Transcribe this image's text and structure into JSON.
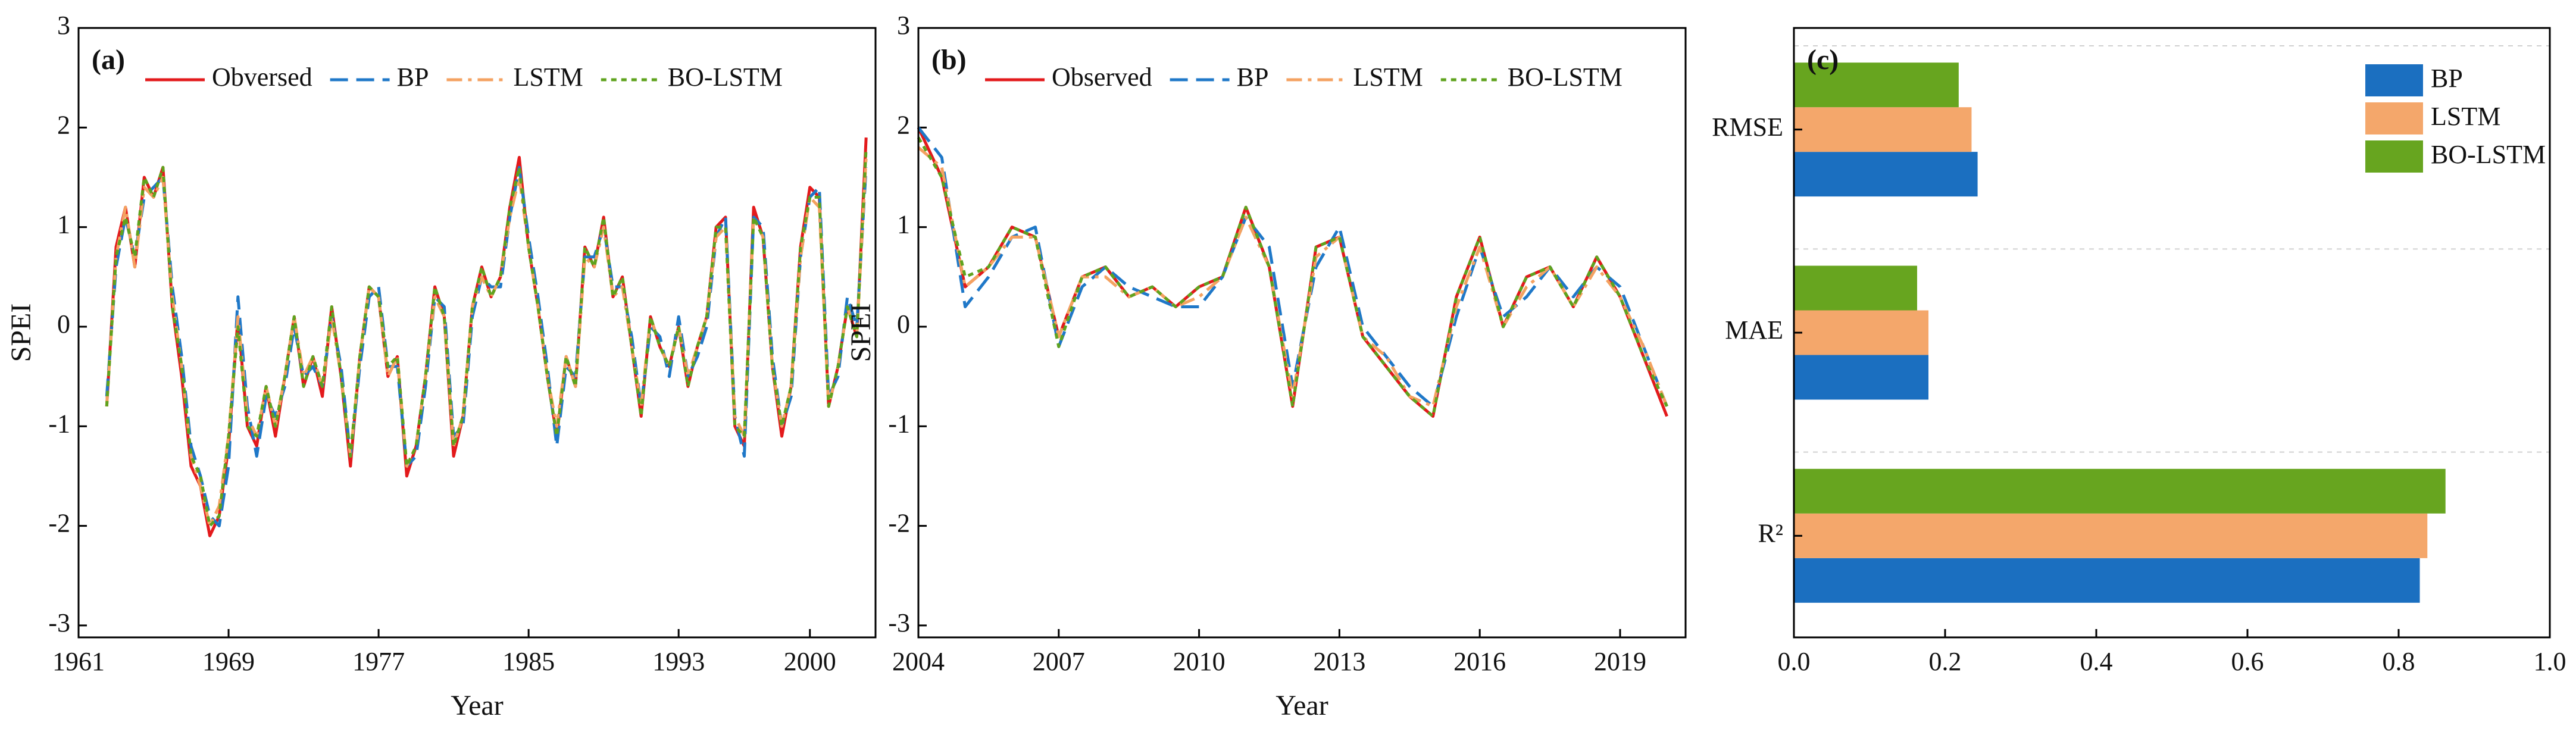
{
  "chart_data": [
    {
      "type": "line",
      "label": "(a)",
      "xlabel": "Year",
      "ylabel": "SPEI",
      "legend": "upper left",
      "xlim": [
        1961,
        2003.5
      ],
      "xticks": [
        1961,
        1969,
        1977,
        1985,
        1993,
        2000
      ],
      "ylim": [
        -3.12,
        3
      ],
      "yticks": [
        -3,
        -2,
        -1,
        0,
        1,
        2,
        3
      ],
      "x": [
        1962.5,
        1963,
        1963.5,
        1964,
        1964.5,
        1965,
        1965.5,
        1966,
        1966.5,
        1967,
        1967.5,
        1968,
        1968.5,
        1969,
        1969.5,
        1970,
        1970.5,
        1971,
        1971.5,
        1972,
        1972.5,
        1973,
        1973.5,
        1974,
        1974.5,
        1975,
        1975.5,
        1976,
        1976.5,
        1977,
        1977.5,
        1978,
        1978.5,
        1979,
        1979.5,
        1980,
        1980.5,
        1981,
        1981.5,
        1982,
        1982.5,
        1983,
        1983.5,
        1984,
        1984.5,
        1985,
        1985.5,
        1986,
        1986.5,
        1987,
        1987.5,
        1988,
        1988.5,
        1989,
        1989.5,
        1990,
        1990.5,
        1991,
        1991.5,
        1992,
        1992.5,
        1993,
        1993.5,
        1994,
        1994.5,
        1995,
        1995.5,
        1996,
        1996.5,
        1997,
        1997.5,
        1998,
        1998.5,
        1999,
        1999.5,
        2000,
        2000.5,
        2001,
        2001.5,
        2002,
        2002.5,
        2003
      ],
      "series": [
        {
          "name": "Obversed",
          "color": "#e31a1c",
          "dash": "solid",
          "values": [
            -0.8,
            0.8,
            1.2,
            0.6,
            1.5,
            1.3,
            1.6,
            0.2,
            -0.5,
            -1.4,
            -1.6,
            -2.1,
            -1.9,
            -1.2,
            0.1,
            -1.0,
            -1.2,
            -0.6,
            -1.1,
            -0.5,
            0.1,
            -0.6,
            -0.3,
            -0.7,
            0.2,
            -0.5,
            -1.4,
            -0.3,
            0.4,
            0.3,
            -0.5,
            -0.3,
            -1.5,
            -1.2,
            -0.5,
            0.4,
            0.1,
            -1.3,
            -0.9,
            0.2,
            0.6,
            0.3,
            0.5,
            1.2,
            1.7,
            0.8,
            0.2,
            -0.5,
            -1.1,
            -0.3,
            -0.6,
            0.8,
            0.6,
            1.1,
            0.3,
            0.5,
            -0.2,
            -0.9,
            0.1,
            -0.2,
            -0.4,
            0.0,
            -0.6,
            -0.2,
            0.1,
            1.0,
            1.1,
            -1.0,
            -1.2,
            1.2,
            0.9,
            -0.4,
            -1.1,
            -0.6,
            0.8,
            1.4,
            1.3,
            -0.8,
            -0.4,
            0.2,
            -0.1,
            1.9
          ]
        },
        {
          "name": "BP",
          "color": "#1f78c8",
          "dash": "dashed",
          "values": [
            -0.7,
            0.6,
            1.1,
            0.7,
            1.3,
            1.4,
            1.5,
            0.4,
            -0.3,
            -1.2,
            -1.5,
            -1.9,
            -2.0,
            -1.4,
            0.3,
            -0.8,
            -1.3,
            -0.7,
            -0.9,
            -0.6,
            0.0,
            -0.5,
            -0.4,
            -0.6,
            0.1,
            -0.4,
            -1.3,
            -0.4,
            0.3,
            0.4,
            -0.4,
            -0.4,
            -1.4,
            -1.3,
            -0.6,
            0.3,
            0.2,
            -1.1,
            -1.0,
            0.1,
            0.5,
            0.4,
            0.4,
            1.1,
            1.6,
            0.9,
            0.3,
            -0.4,
            -1.2,
            -0.4,
            -0.5,
            0.7,
            0.7,
            1.0,
            0.4,
            0.4,
            -0.1,
            -0.8,
            0.0,
            -0.1,
            -0.5,
            0.1,
            -0.5,
            -0.3,
            0.0,
            0.9,
            1.1,
            -0.9,
            -1.3,
            1.1,
            1.0,
            -0.3,
            -1.0,
            -0.7,
            0.7,
            1.3,
            1.4,
            -0.7,
            -0.5,
            0.3,
            0.0,
            1.6
          ]
        },
        {
          "name": "LSTM",
          "color": "#f4a261",
          "dash": "dashdot",
          "values": [
            -0.8,
            0.7,
            1.2,
            0.6,
            1.4,
            1.3,
            1.5,
            0.3,
            -0.4,
            -1.3,
            -1.6,
            -2.0,
            -1.8,
            -1.1,
            0.1,
            -0.9,
            -1.1,
            -0.6,
            -1.0,
            -0.5,
            0.1,
            -0.5,
            -0.3,
            -0.6,
            0.1,
            -0.5,
            -1.3,
            -0.3,
            0.4,
            0.3,
            -0.5,
            -0.3,
            -1.4,
            -1.2,
            -0.5,
            0.3,
            0.1,
            -1.2,
            -0.9,
            0.2,
            0.5,
            0.3,
            0.5,
            1.1,
            1.5,
            0.8,
            0.2,
            -0.5,
            -1.0,
            -0.3,
            -0.6,
            0.7,
            0.6,
            1.0,
            0.3,
            0.4,
            -0.2,
            -0.8,
            0.1,
            -0.2,
            -0.4,
            0.0,
            -0.5,
            -0.2,
            0.1,
            0.9,
            1.0,
            -0.9,
            -1.1,
            1.1,
            0.9,
            -0.4,
            -1.0,
            -0.6,
            0.7,
            1.3,
            1.2,
            -0.8,
            -0.4,
            0.2,
            -0.1,
            1.7
          ]
        },
        {
          "name": "BO-LSTM",
          "color": "#5fa31e",
          "dash": "dotted",
          "values": [
            -0.8,
            0.7,
            1.1,
            0.7,
            1.5,
            1.3,
            1.6,
            0.2,
            -0.4,
            -1.3,
            -1.5,
            -2.0,
            -1.9,
            -1.1,
            0.0,
            -1.0,
            -1.1,
            -0.6,
            -1.0,
            -0.5,
            0.1,
            -0.6,
            -0.3,
            -0.6,
            0.2,
            -0.5,
            -1.3,
            -0.3,
            0.4,
            0.3,
            -0.4,
            -0.3,
            -1.4,
            -1.2,
            -0.5,
            0.4,
            0.1,
            -1.2,
            -0.9,
            0.2,
            0.6,
            0.3,
            0.5,
            1.2,
            1.6,
            0.8,
            0.2,
            -0.5,
            -1.1,
            -0.3,
            -0.6,
            0.8,
            0.6,
            1.1,
            0.3,
            0.5,
            -0.2,
            -0.9,
            0.1,
            -0.2,
            -0.4,
            0.0,
            -0.6,
            -0.2,
            0.1,
            1.0,
            1.0,
            -1.0,
            -1.1,
            1.1,
            0.9,
            -0.4,
            -1.0,
            -0.6,
            0.8,
            1.3,
            1.3,
            -0.8,
            -0.4,
            0.2,
            -0.1,
            1.8
          ]
        }
      ]
    },
    {
      "type": "line",
      "label": "(b)",
      "xlabel": "Year",
      "ylabel": "SPEI",
      "legend": "upper left",
      "xlim": [
        2004,
        2020.4
      ],
      "xticks": [
        2004,
        2007,
        2010,
        2013,
        2016,
        2019
      ],
      "ylim": [
        -3.12,
        3
      ],
      "yticks": [
        -3,
        -2,
        -1,
        0,
        1,
        2,
        3
      ],
      "x": [
        2004,
        2004.5,
        2005,
        2005.5,
        2006,
        2006.5,
        2007,
        2007.5,
        2008,
        2008.5,
        2009,
        2009.5,
        2010,
        2010.5,
        2011,
        2011.5,
        2012,
        2012.5,
        2013,
        2013.5,
        2014,
        2014.5,
        2015,
        2015.5,
        2016,
        2016.5,
        2017,
        2017.5,
        2018,
        2018.5,
        2019,
        2019.5,
        2020
      ],
      "series": [
        {
          "name": "Observed",
          "color": "#e31a1c",
          "dash": "solid",
          "values": [
            2.0,
            1.5,
            0.4,
            0.6,
            1.0,
            0.9,
            -0.1,
            0.5,
            0.6,
            0.3,
            0.4,
            0.2,
            0.4,
            0.5,
            1.2,
            0.6,
            -0.8,
            0.8,
            0.9,
            -0.1,
            -0.4,
            -0.7,
            -0.9,
            0.3,
            0.9,
            0.0,
            0.5,
            0.6,
            0.2,
            0.7,
            0.3,
            -0.3,
            -0.9
          ]
        },
        {
          "name": "BP",
          "color": "#1f78c8",
          "dash": "dashed",
          "values": [
            2.0,
            1.7,
            0.2,
            0.5,
            0.9,
            1.0,
            -0.2,
            0.4,
            0.6,
            0.4,
            0.3,
            0.2,
            0.2,
            0.5,
            1.1,
            0.8,
            -0.6,
            0.6,
            1.0,
            0.0,
            -0.3,
            -0.6,
            -0.8,
            0.1,
            0.8,
            0.1,
            0.3,
            0.6,
            0.3,
            0.6,
            0.4,
            -0.2,
            -0.8
          ]
        },
        {
          "name": "LSTM",
          "color": "#f4a261",
          "dash": "dashdot",
          "values": [
            1.8,
            1.6,
            0.4,
            0.6,
            0.9,
            0.9,
            -0.1,
            0.5,
            0.5,
            0.3,
            0.4,
            0.2,
            0.3,
            0.5,
            1.1,
            0.6,
            -0.7,
            0.7,
            0.9,
            -0.1,
            -0.3,
            -0.7,
            -0.8,
            0.2,
            0.8,
            0.0,
            0.4,
            0.6,
            0.2,
            0.6,
            0.3,
            -0.2,
            -0.8
          ]
        },
        {
          "name": "BO-LSTM",
          "color": "#5fa31e",
          "dash": "dotted",
          "values": [
            1.9,
            1.5,
            0.5,
            0.6,
            1.0,
            0.9,
            -0.2,
            0.5,
            0.6,
            0.3,
            0.4,
            0.2,
            0.4,
            0.5,
            1.2,
            0.6,
            -0.8,
            0.8,
            0.9,
            -0.1,
            -0.4,
            -0.7,
            -0.9,
            0.3,
            0.9,
            0.0,
            0.5,
            0.6,
            0.2,
            0.7,
            0.3,
            -0.3,
            -0.8
          ]
        }
      ]
    },
    {
      "type": "barh",
      "label": "(c)",
      "legend": "upper right",
      "grid": true,
      "categories": [
        "RMSE",
        "MAE",
        "R²"
      ],
      "xlim": [
        0,
        1
      ],
      "xticks": [
        {
          "value": 0,
          "label": "0.0"
        },
        {
          "value": 0.2,
          "label": "0.2"
        },
        {
          "value": 0.4,
          "label": "0.4"
        },
        {
          "value": 0.6,
          "label": "0.6"
        },
        {
          "value": 0.8,
          "label": "0.8"
        },
        {
          "value": 1,
          "label": "1.0"
        }
      ],
      "series": [
        {
          "name": "BP",
          "color": "#1b6fc0",
          "values": [
            0.243,
            0.178,
            0.828
          ]
        },
        {
          "name": "LSTM",
          "color": "#f4a76b",
          "values": [
            0.235,
            0.178,
            0.838
          ]
        },
        {
          "name": "BO-LSTM",
          "color": "#67a51f",
          "values": [
            0.218,
            0.163,
            0.862
          ]
        }
      ]
    }
  ]
}
